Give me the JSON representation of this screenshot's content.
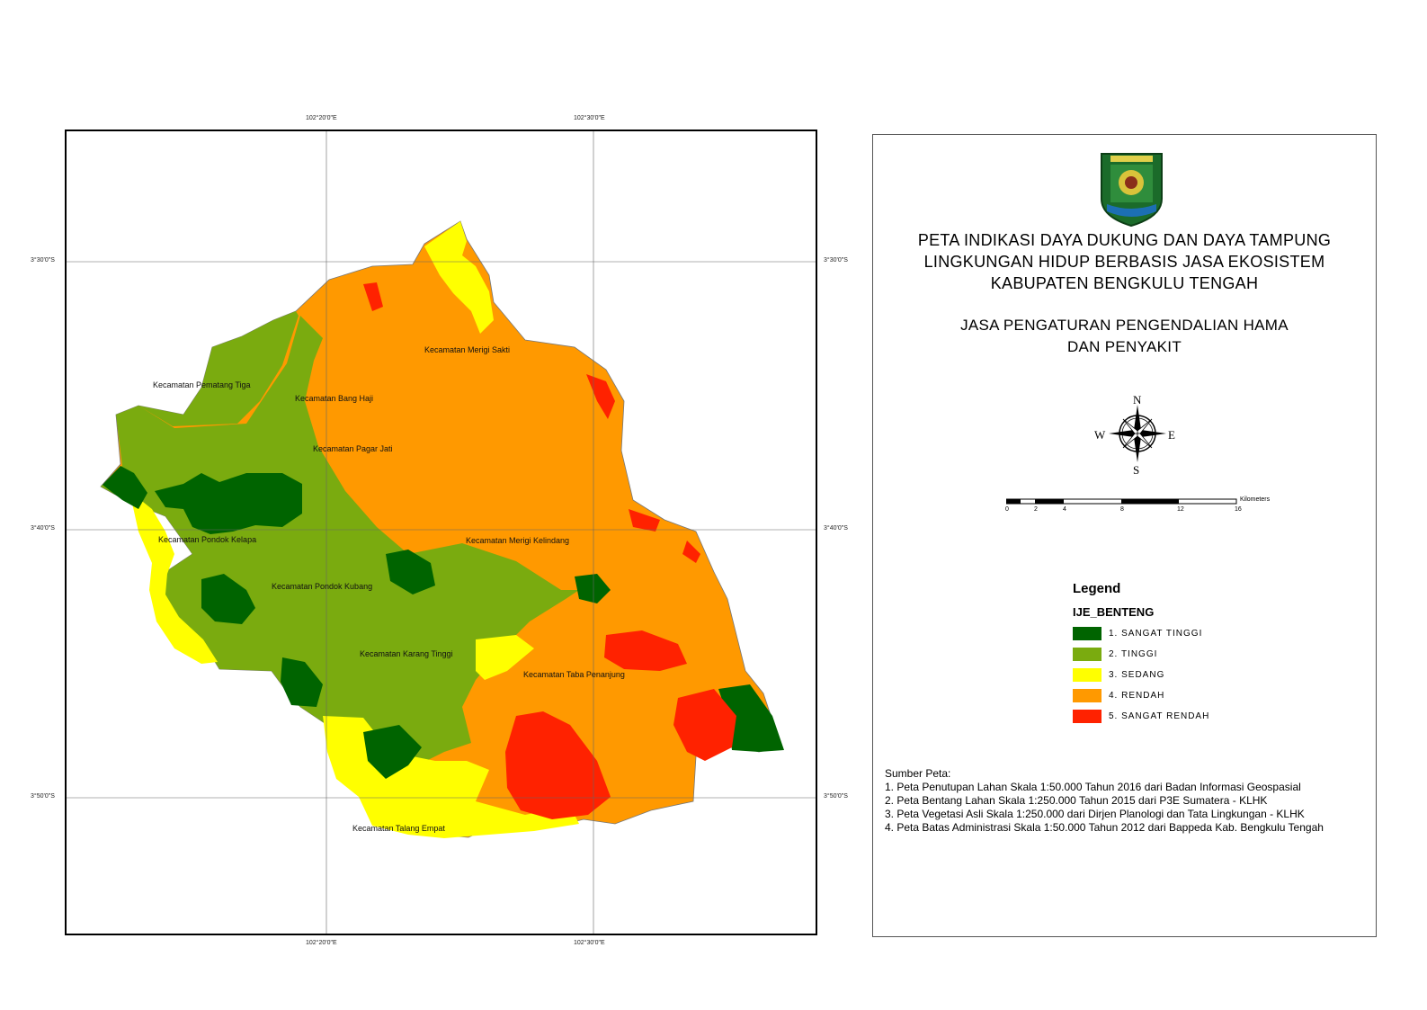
{
  "map": {
    "top_lon_labels": [
      "102°20'0\"E",
      "102°30'0\"E"
    ],
    "bottom_lon_labels": [
      "102°20'0\"E",
      "102°30'0\"E"
    ],
    "left_lat_labels": [
      "3°30'0\"S",
      "3°40'0\"S",
      "3°50'0\"S"
    ],
    "right_lat_labels": [
      "3°30'0\"S",
      "3°40'0\"S",
      "3°50'0\"S"
    ],
    "places": [
      "Kecamatan Merigi Sakti",
      "Kecamatan Pematang Tiga",
      "Kecamatan Bang Haji",
      "Kecamatan Pagar Jati",
      "Kecamatan Pondok Kelapa",
      "Kecamatan Merigi Kelindang",
      "Kecamatan Pondok Kubang",
      "Kecamatan Karang Tinggi",
      "Kecamatan Taba Penanjung",
      "Kecamatan Talang Empat"
    ]
  },
  "title": {
    "line1": "PETA INDIKASI DAYA DUKUNG DAN DAYA TAMPUNG",
    "line2": "LINGKUNGAN HIDUP BERBASIS JASA EKOSISTEM",
    "line3": "KABUPATEN BENGKULU TENGAH",
    "sub1": "JASA PENGATURAN PENGENDALIAN HAMA",
    "sub2": "DAN PENYAKIT"
  },
  "compass": {
    "n": "N",
    "s": "S",
    "e": "E",
    "w": "W"
  },
  "scale": {
    "unit": "Kilometers",
    "ticks": [
      "0",
      "2",
      "4",
      "8",
      "12",
      "16"
    ]
  },
  "legend": {
    "title": "Legend",
    "layer": "IJE_BENTENG",
    "items": [
      {
        "label": "1. SANGAT TINGGI",
        "color": "#006400"
      },
      {
        "label": "2. TINGGI",
        "color": "#7aab0f"
      },
      {
        "label": "3. SEDANG",
        "color": "#ffff00"
      },
      {
        "label": "4. RENDAH",
        "color": "#ff9900"
      },
      {
        "label": "5. SANGAT RENDAH",
        "color": "#ff2200"
      }
    ]
  },
  "sources": {
    "heading": "Sumber Peta:",
    "items": [
      "1. Peta Penutupan Lahan Skala 1:50.000 Tahun 2016 dari Badan Informasi Geospasial",
      "2. Peta Bentang Lahan Skala 1:250.000 Tahun 2015 dari  P3E Sumatera - KLHK",
      "3. Peta Vegetasi Asli Skala 1:250.000 dari Dirjen Planologi dan Tata Lingkungan - KLHK",
      "4. Peta Batas Administrasi Skala 1:50.000 Tahun 2012 dari Bappeda Kab. Bengkulu Tengah"
    ]
  }
}
